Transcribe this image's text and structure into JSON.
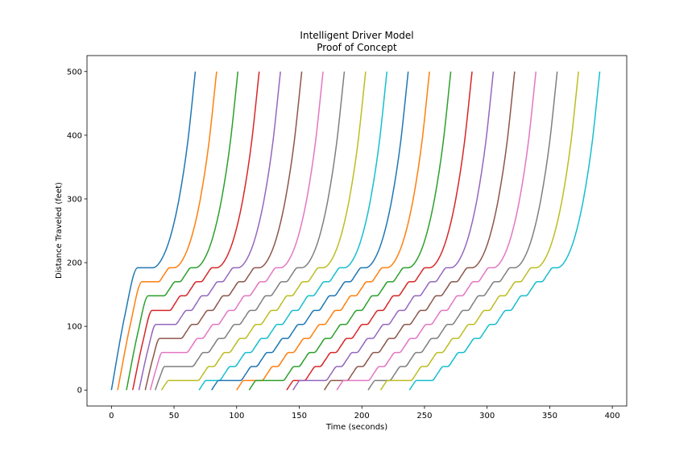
{
  "chart_data": {
    "type": "line",
    "title": "Intelligent Driver Model",
    "subtitle": "Proof of Concept",
    "x_label": "Time (seconds)",
    "y_label": "Distance Traveled (feet)",
    "xlim": [
      -19.5,
      411.5
    ],
    "ylim": [
      -25,
      525
    ],
    "xticks": [
      0,
      50,
      100,
      150,
      200,
      250,
      300,
      350,
      400
    ],
    "yticks": [
      0,
      100,
      200,
      300,
      400,
      500
    ],
    "series": [
      {
        "color": "#1f77b4",
        "x": [
          0,
          10.5,
          21,
          33,
          40,
          47,
          54,
          61,
          67
        ],
        "values": [
          0,
          115,
          192,
          192,
          205,
          240,
          300,
          390,
          500
        ]
      },
      {
        "color": "#ff7f0e",
        "x": [
          5,
          15,
          24.5,
          37.5,
          42,
          46.5,
          50,
          57,
          64,
          71,
          78,
          84
        ],
        "values": [
          0,
          102,
          170,
          170,
          181,
          192,
          192,
          205,
          240,
          300,
          390,
          500
        ]
      },
      {
        "color": "#2ca02c",
        "x": [
          12,
          21,
          29.5,
          42,
          46.5,
          51,
          54.5,
          59,
          63.5,
          67,
          74,
          81,
          88,
          95,
          101
        ],
        "values": [
          0,
          89,
          148,
          148,
          159,
          170,
          170,
          181,
          192,
          192,
          205,
          240,
          300,
          390,
          500
        ]
      },
      {
        "color": "#d62728",
        "x": [
          17,
          25,
          32.5,
          46.5,
          51,
          55.5,
          59,
          63.5,
          68,
          71.5,
          76,
          80.5,
          84,
          91,
          98,
          105,
          112,
          118
        ],
        "values": [
          0,
          75,
          125,
          125,
          136.5,
          148,
          148,
          159,
          170,
          170,
          181,
          192,
          192,
          205,
          240,
          300,
          390,
          500
        ]
      },
      {
        "color": "#9467bd",
        "x": [
          22,
          29,
          35.5,
          51,
          55.5,
          60,
          63.5,
          68,
          72.5,
          76,
          80.5,
          85,
          88.5,
          93,
          97.5,
          101,
          108,
          115,
          122,
          129,
          135
        ],
        "values": [
          0,
          62,
          103,
          103,
          114,
          125,
          125,
          136.5,
          148,
          148,
          159,
          170,
          170,
          181,
          192,
          192,
          205,
          240,
          300,
          390,
          500
        ]
      },
      {
        "color": "#8c564b",
        "x": [
          27,
          33,
          38.5,
          55.5,
          60,
          64.5,
          68,
          72.5,
          77,
          80.5,
          85,
          89.5,
          93,
          97.5,
          102,
          105.5,
          110,
          114.5,
          118,
          125,
          132,
          139,
          146,
          152
        ],
        "values": [
          0,
          49,
          81,
          81,
          92,
          103,
          103,
          114,
          125,
          125,
          136.5,
          148,
          148,
          159,
          170,
          170,
          181,
          192,
          192,
          205,
          240,
          300,
          390,
          500
        ]
      },
      {
        "color": "#e377c2",
        "x": [
          31,
          36,
          40.5,
          60,
          64.5,
          69,
          72.5,
          77,
          81.5,
          85,
          89.5,
          94,
          97.5,
          102,
          106.5,
          110,
          114.5,
          119,
          122.5,
          127,
          131.5,
          135,
          142,
          149,
          156,
          163,
          169
        ],
        "values": [
          0,
          35,
          59,
          59,
          70,
          81,
          81,
          92,
          103,
          103,
          114,
          125,
          125,
          136.5,
          148,
          148,
          159,
          170,
          170,
          181,
          192,
          192,
          205,
          240,
          300,
          390,
          500
        ]
      },
      {
        "color": "#7f7f7f",
        "x": [
          35,
          39,
          42.5,
          64.5,
          69,
          73.5,
          77,
          81.5,
          86,
          89.5,
          94,
          98.5,
          102,
          106.5,
          111,
          114.5,
          119,
          123.5,
          127,
          131.5,
          136,
          139.5,
          144,
          148.5,
          152,
          159,
          166,
          173,
          180,
          186
        ],
        "values": [
          0,
          22,
          37,
          37,
          48,
          59,
          59,
          70,
          81,
          81,
          92,
          103,
          103,
          114,
          125,
          125,
          136.5,
          148,
          148,
          159,
          170,
          170,
          181,
          192,
          192,
          205,
          240,
          300,
          390,
          500
        ]
      },
      {
        "color": "#bcbd22",
        "x": [
          40,
          43,
          45.5,
          69,
          73.5,
          78,
          81.5,
          86,
          90.5,
          94,
          98.5,
          103,
          106.5,
          111,
          115.5,
          119,
          123.5,
          128,
          131.5,
          136,
          140.5,
          144,
          148.5,
          153,
          156.5,
          161,
          165.5,
          169,
          176,
          183,
          190,
          197,
          203
        ],
        "values": [
          0,
          9,
          15,
          15,
          26,
          37,
          37,
          48,
          59,
          59,
          70,
          81,
          81,
          92,
          103,
          103,
          114,
          125,
          125,
          136.5,
          148,
          148,
          159,
          170,
          170,
          181,
          192,
          192,
          205,
          240,
          300,
          390,
          500
        ]
      },
      {
        "color": "#17becf",
        "x": [
          70,
          73,
          75.5,
          86,
          90.5,
          95,
          98.5,
          103,
          107.5,
          111,
          115.5,
          120,
          123.5,
          128,
          132.5,
          136,
          140.5,
          145,
          148.5,
          153,
          157.5,
          161,
          165.5,
          170,
          173.5,
          178,
          182.5,
          186,
          193,
          200,
          207,
          214,
          220
        ],
        "values": [
          0,
          9,
          15,
          15,
          26,
          37,
          37,
          48,
          59,
          59,
          70,
          81,
          81,
          92,
          103,
          103,
          114,
          125,
          125,
          136.5,
          148,
          148,
          159,
          170,
          170,
          181,
          192,
          192,
          205,
          240,
          300,
          390,
          500
        ]
      },
      {
        "color": "#1f77b4",
        "x": [
          80,
          83,
          85.5,
          103,
          107.5,
          112,
          115.5,
          120,
          124.5,
          128,
          132.5,
          137,
          140.5,
          145,
          149.5,
          153,
          157.5,
          162,
          165.5,
          170,
          174.5,
          178,
          182.5,
          187,
          190.5,
          195,
          199.5,
          203,
          210,
          217,
          224,
          231,
          237
        ],
        "values": [
          0,
          9,
          15,
          15,
          26,
          37,
          37,
          48,
          59,
          59,
          70,
          81,
          81,
          92,
          103,
          103,
          114,
          125,
          125,
          136.5,
          148,
          148,
          159,
          170,
          170,
          181,
          192,
          192,
          205,
          240,
          300,
          390,
          500
        ]
      },
      {
        "color": "#ff7f0e",
        "x": [
          100,
          103,
          105.5,
          120,
          124.5,
          129,
          132.5,
          137,
          141.5,
          145,
          149.5,
          154,
          157.5,
          162,
          166.5,
          170,
          174.5,
          179,
          182.5,
          187,
          191.5,
          195,
          199.5,
          204,
          207.5,
          212,
          216.5,
          220,
          227,
          234,
          241,
          248,
          254
        ],
        "values": [
          0,
          9,
          15,
          15,
          26,
          37,
          37,
          48,
          59,
          59,
          70,
          81,
          81,
          92,
          103,
          103,
          114,
          125,
          125,
          136.5,
          148,
          148,
          159,
          170,
          170,
          181,
          192,
          192,
          205,
          240,
          300,
          390,
          500
        ]
      },
      {
        "color": "#2ca02c",
        "x": [
          110,
          113,
          115.5,
          137,
          141.5,
          146,
          149.5,
          154,
          158.5,
          162,
          166.5,
          171,
          174.5,
          179,
          183.5,
          187,
          191.5,
          196,
          199.5,
          204,
          208.5,
          212,
          216.5,
          221,
          224.5,
          229,
          233.5,
          237,
          244,
          251,
          258,
          265,
          271
        ],
        "values": [
          0,
          9,
          15,
          15,
          26,
          37,
          37,
          48,
          59,
          59,
          70,
          81,
          81,
          92,
          103,
          103,
          114,
          125,
          125,
          136.5,
          148,
          148,
          159,
          170,
          170,
          181,
          192,
          192,
          205,
          240,
          300,
          390,
          500
        ]
      },
      {
        "color": "#d62728",
        "x": [
          140,
          143,
          145.5,
          154,
          158.5,
          163,
          166.5,
          171,
          175.5,
          179,
          183.5,
          188,
          191.5,
          196,
          200.5,
          204,
          208.5,
          213,
          216.5,
          221,
          225.5,
          229,
          233.5,
          238,
          241.5,
          246,
          250.5,
          254,
          261,
          268,
          275,
          282,
          288
        ],
        "values": [
          0,
          9,
          15,
          15,
          26,
          37,
          37,
          48,
          59,
          59,
          70,
          81,
          81,
          92,
          103,
          103,
          114,
          125,
          125,
          136.5,
          148,
          148,
          159,
          170,
          170,
          181,
          192,
          192,
          205,
          240,
          300,
          390,
          500
        ]
      },
      {
        "color": "#9467bd",
        "x": [
          145,
          148,
          150.5,
          171,
          175.5,
          180,
          183.5,
          188,
          192.5,
          196,
          200.5,
          205,
          208.5,
          213,
          217.5,
          221,
          225.5,
          230,
          233.5,
          238,
          242.5,
          246,
          250.5,
          255,
          258.5,
          263,
          267.5,
          271,
          278,
          285,
          292,
          299,
          305
        ],
        "values": [
          0,
          9,
          15,
          15,
          26,
          37,
          37,
          48,
          59,
          59,
          70,
          81,
          81,
          92,
          103,
          103,
          114,
          125,
          125,
          136.5,
          148,
          148,
          159,
          170,
          170,
          181,
          192,
          192,
          205,
          240,
          300,
          390,
          500
        ]
      },
      {
        "color": "#8c564b",
        "x": [
          170,
          173,
          175.5,
          188,
          192.5,
          197,
          200.5,
          205,
          209.5,
          213,
          217.5,
          222,
          225.5,
          230,
          234.5,
          238,
          242.5,
          247,
          250.5,
          255,
          259.5,
          263,
          267.5,
          272,
          275.5,
          280,
          284.5,
          288,
          295,
          302,
          309,
          316,
          322
        ],
        "values": [
          0,
          9,
          15,
          15,
          26,
          37,
          37,
          48,
          59,
          59,
          70,
          81,
          81,
          92,
          103,
          103,
          114,
          125,
          125,
          136.5,
          148,
          148,
          159,
          170,
          170,
          181,
          192,
          192,
          205,
          240,
          300,
          390,
          500
        ]
      },
      {
        "color": "#e377c2",
        "x": [
          180,
          183,
          185.5,
          205,
          209.5,
          214,
          217.5,
          222,
          226.5,
          230,
          234.5,
          239,
          242.5,
          247,
          251.5,
          255,
          259.5,
          264,
          267.5,
          272,
          276.5,
          280,
          284.5,
          289,
          292.5,
          297,
          301.5,
          305,
          312,
          319,
          326,
          333,
          339
        ],
        "values": [
          0,
          9,
          15,
          15,
          26,
          37,
          37,
          48,
          59,
          59,
          70,
          81,
          81,
          92,
          103,
          103,
          114,
          125,
          125,
          136.5,
          148,
          148,
          159,
          170,
          170,
          181,
          192,
          192,
          205,
          240,
          300,
          390,
          500
        ]
      },
      {
        "color": "#7f7f7f",
        "x": [
          205,
          208,
          210.5,
          222,
          226.5,
          231,
          234.5,
          239,
          243.5,
          247,
          251.5,
          256,
          259.5,
          264,
          268.5,
          272,
          276.5,
          281,
          284.5,
          289,
          293.5,
          297,
          301.5,
          306,
          309.5,
          314,
          318.5,
          322,
          329,
          336,
          343,
          350,
          356
        ],
        "values": [
          0,
          9,
          15,
          15,
          26,
          37,
          37,
          48,
          59,
          59,
          70,
          81,
          81,
          92,
          103,
          103,
          114,
          125,
          125,
          136.5,
          148,
          148,
          159,
          170,
          170,
          181,
          192,
          192,
          205,
          240,
          300,
          390,
          500
        ]
      },
      {
        "color": "#bcbd22",
        "x": [
          215,
          218,
          220.5,
          239,
          243.5,
          248,
          251.5,
          256,
          260.5,
          264,
          268.5,
          273,
          276.5,
          281,
          285.5,
          289,
          293.5,
          298,
          301.5,
          306,
          310.5,
          314,
          318.5,
          323,
          326.5,
          331,
          335.5,
          339,
          346,
          353,
          360,
          367,
          373
        ],
        "values": [
          0,
          9,
          15,
          15,
          26,
          37,
          37,
          48,
          59,
          59,
          70,
          81,
          81,
          92,
          103,
          103,
          114,
          125,
          125,
          136.5,
          148,
          148,
          159,
          170,
          170,
          181,
          192,
          192,
          205,
          240,
          300,
          390,
          500
        ]
      },
      {
        "color": "#17becf",
        "x": [
          238,
          241,
          243.5,
          256,
          260.5,
          265,
          268.5,
          273,
          277.5,
          281,
          285.5,
          290,
          293.5,
          298,
          302.5,
          306,
          310.5,
          315,
          318.5,
          323,
          327.5,
          331,
          335.5,
          340,
          343.5,
          348,
          352.5,
          356,
          363,
          370,
          377,
          384,
          390
        ],
        "values": [
          0,
          9,
          15,
          15,
          26,
          37,
          37,
          48,
          59,
          59,
          70,
          81,
          81,
          92,
          103,
          103,
          114,
          125,
          125,
          136.5,
          148,
          148,
          159,
          170,
          170,
          181,
          192,
          192,
          205,
          240,
          300,
          390,
          500
        ]
      }
    ]
  }
}
